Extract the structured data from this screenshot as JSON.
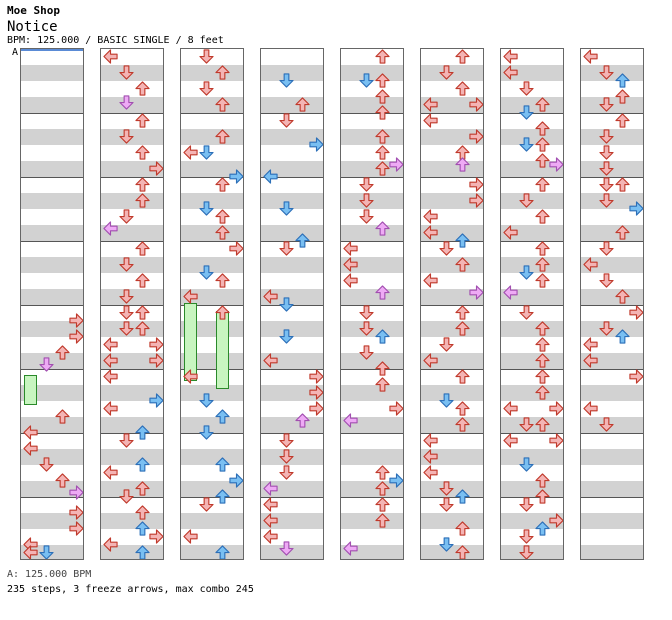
{
  "header": {
    "artist": "Moe Shop",
    "title": "Notice",
    "meta": "BPM: 125.000 / BASIC SINGLE / 8 feet",
    "bpm_marker": "A"
  },
  "footer": {
    "bpm_legend": "A: 125.000 BPM",
    "summary": "235 steps, 3 freeze arrows, max combo 245"
  },
  "colors": {
    "quarter_note": "#f4b4b4",
    "eighth_note": "#79bff2",
    "sixteenth_note": "#eeaaf5",
    "freeze": "#c8f5c0"
  },
  "icons": [
    "arrow-left-icon",
    "arrow-down-icon",
    "arrow-up-icon",
    "arrow-right-icon",
    "freeze-arrow-icon"
  ],
  "chart_data": {
    "type": "step-chart",
    "columns": 8,
    "measures_per_column": 8,
    "total_steps": 235,
    "freeze_arrows": 3,
    "max_combo": 245,
    "bpm": 125.0
  }
}
